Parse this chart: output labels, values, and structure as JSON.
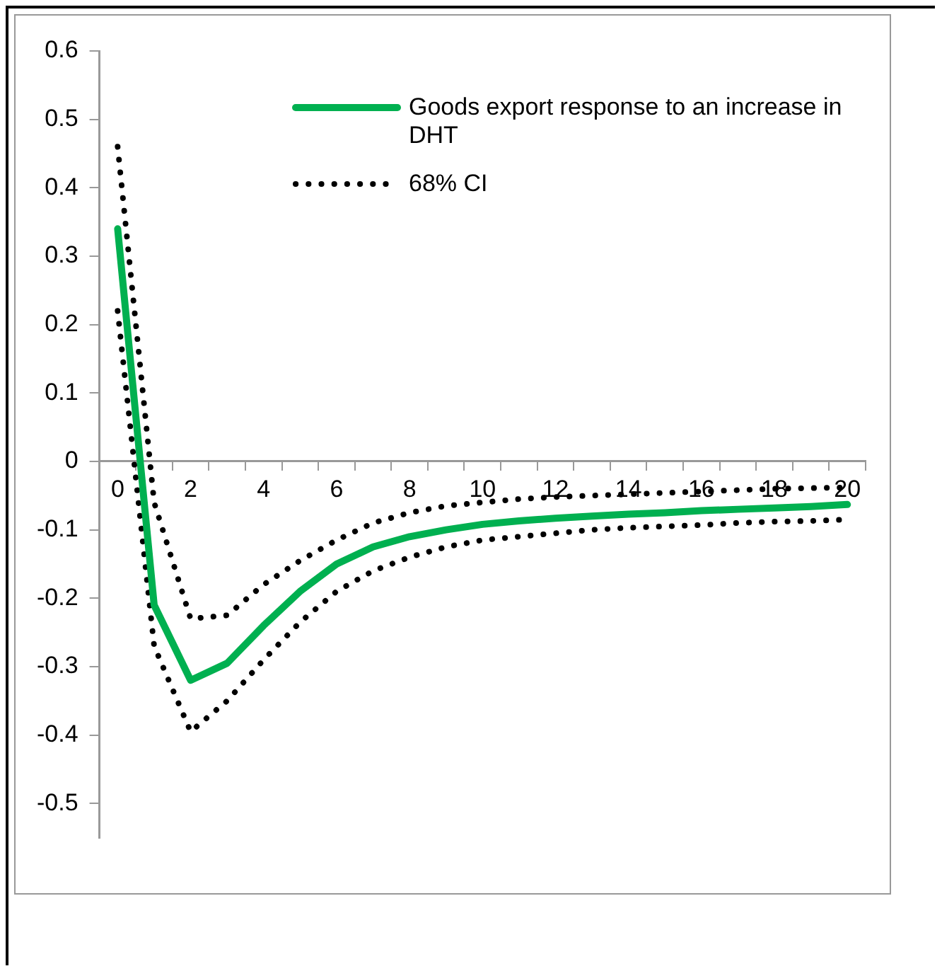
{
  "chart_data": {
    "type": "line",
    "categories": [
      "0",
      null,
      "2",
      null,
      "4",
      null,
      "6",
      null,
      "8",
      null,
      "10",
      null,
      "12",
      null,
      "14",
      null,
      "16",
      null,
      "18",
      null,
      "20"
    ],
    "series": [
      {
        "name": "Goods export response to an increase in DHT",
        "color": "#00b050",
        "line_style": "solid",
        "values": [
          0.34,
          -0.21,
          -0.32,
          -0.295,
          -0.24,
          -0.19,
          -0.15,
          -0.125,
          -0.11,
          -0.1,
          -0.092,
          -0.087,
          -0.083,
          -0.08,
          -0.077,
          -0.075,
          -0.072,
          -0.07,
          -0.068,
          -0.066,
          -0.063
        ]
      },
      {
        "name": "68% CI",
        "color": "#000000",
        "line_style": "dotted",
        "values": [
          0.46,
          -0.06,
          -0.23,
          -0.225,
          -0.18,
          -0.145,
          -0.115,
          -0.09,
          -0.075,
          -0.065,
          -0.06,
          -0.055,
          -0.052,
          -0.05,
          -0.048,
          -0.046,
          -0.044,
          -0.042,
          -0.04,
          -0.039,
          -0.038
        ]
      },
      {
        "color": "#000000",
        "line_style": "dotted",
        "values": [
          0.22,
          -0.27,
          -0.395,
          -0.35,
          -0.29,
          -0.235,
          -0.19,
          -0.16,
          -0.14,
          -0.125,
          -0.115,
          -0.11,
          -0.105,
          -0.1,
          -0.097,
          -0.095,
          -0.093,
          -0.09,
          -0.088,
          -0.087,
          -0.085
        ]
      }
    ],
    "ylim": [
      -0.55,
      0.6
    ],
    "yticks": [
      -0.5,
      -0.4,
      -0.3,
      -0.2,
      -0.1,
      0,
      0.1,
      0.2,
      0.3,
      0.4,
      0.5,
      0.6
    ],
    "grid": false,
    "legend": "top right",
    "marker": "none"
  }
}
